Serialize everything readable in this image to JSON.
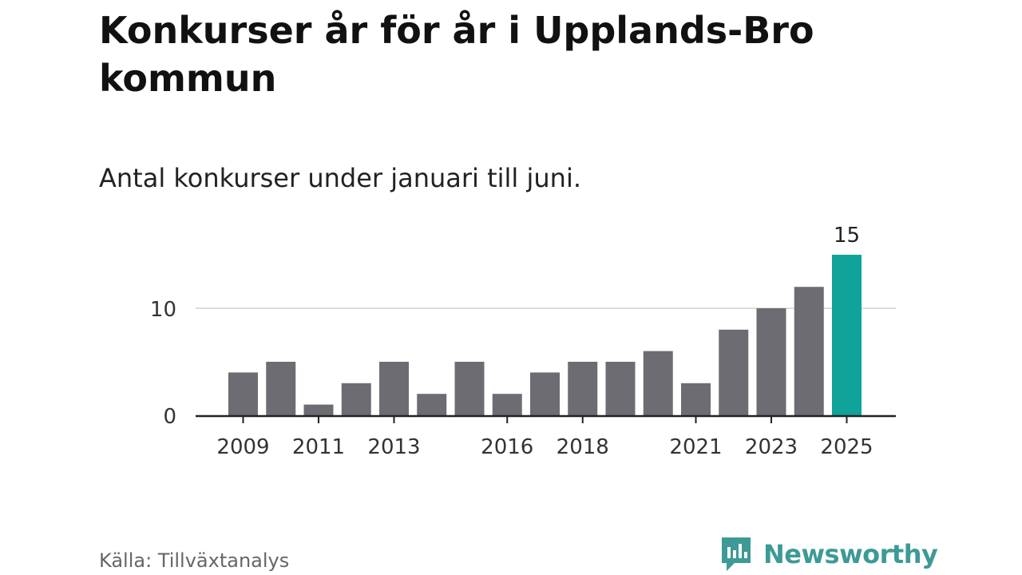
{
  "title": "Konkurser år för år i Upplands-Bro kommun",
  "subtitle": "Antal konkurser under januari till juni.",
  "source": "Källa: Tillväxtanalys",
  "brand": "Newsworthy",
  "colors": {
    "bar": "#6d6c73",
    "highlight": "#0fa39a",
    "brand": "#3d9a96",
    "grid": "#dddddd",
    "axis": "#222222"
  },
  "chart_data": {
    "type": "bar",
    "categories": [
      "2009",
      "2010",
      "2011",
      "2012",
      "2013",
      "2014",
      "2015",
      "2016",
      "2017",
      "2018",
      "2019",
      "2020",
      "2021",
      "2022",
      "2023",
      "2024",
      "2025"
    ],
    "values": [
      4,
      5,
      1,
      3,
      5,
      2,
      5,
      2,
      4,
      5,
      5,
      6,
      3,
      8,
      10,
      12,
      15
    ],
    "highlight_category": "2025",
    "data_labels": [
      {
        "category": "2025",
        "text": "15"
      }
    ],
    "xtick_labels": [
      "2009",
      "2011",
      "2013",
      "2016",
      "2018",
      "2021",
      "2023",
      "2025"
    ],
    "yticks": [
      0,
      10
    ],
    "ytick_labels": [
      "0",
      "10"
    ],
    "ylim": [
      0,
      15
    ],
    "grid": true
  }
}
